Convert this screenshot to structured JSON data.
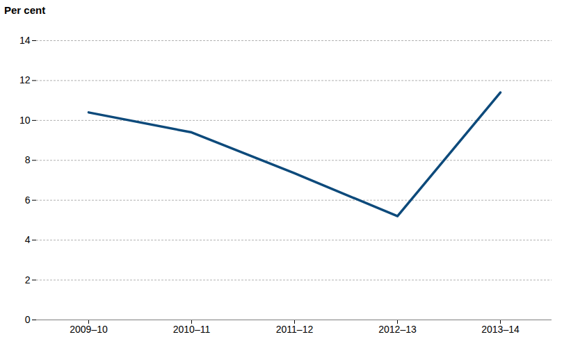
{
  "chart_data": {
    "type": "line",
    "y_label": "Per cent",
    "categories": [
      "2009–10",
      "2010–11",
      "2011–12",
      "2012–13",
      "2013–14"
    ],
    "values": [
      10.4,
      9.4,
      7.35,
      5.2,
      11.4
    ],
    "color": "#0d4a7b",
    "ylim": [
      0,
      14
    ],
    "yticks": [
      0,
      2,
      4,
      6,
      8,
      10,
      12,
      14
    ],
    "grid": true
  }
}
